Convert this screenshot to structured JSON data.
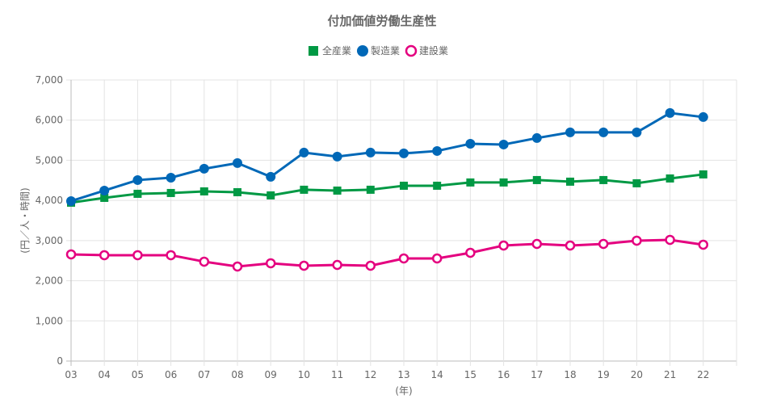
{
  "chart_data": {
    "type": "line",
    "title": "付加価値労働生産性",
    "xlabel": "(年)",
    "ylabel": "(円／人・時間)",
    "categories": [
      "03",
      "04",
      "05",
      "06",
      "07",
      "08",
      "09",
      "10",
      "11",
      "12",
      "13",
      "14",
      "15",
      "16",
      "17",
      "18",
      "19",
      "20",
      "21",
      "22"
    ],
    "ylim": [
      0,
      7000
    ],
    "yticks": [
      0,
      1000,
      2000,
      3000,
      4000,
      5000,
      6000,
      7000
    ],
    "ytick_labels": [
      "0",
      "1,000",
      "2,000",
      "3,000",
      "4,000",
      "5,000",
      "6,000",
      "7,000"
    ],
    "grid": true,
    "legend_position": "top-center",
    "series": [
      {
        "name": "全産業",
        "color": "#009944",
        "marker": "square",
        "values": [
          3944,
          4064,
          4165,
          4185,
          4225,
          4205,
          4125,
          4266,
          4245,
          4266,
          4366,
          4366,
          4447,
          4447,
          4507,
          4467,
          4507,
          4427,
          4547,
          4648
        ]
      },
      {
        "name": "製造業",
        "color": "#0068b7",
        "marker": "circle",
        "values": [
          3984,
          4245,
          4507,
          4567,
          4789,
          4930,
          4588,
          5191,
          5091,
          5191,
          5171,
          5231,
          5412,
          5392,
          5553,
          5694,
          5694,
          5694,
          6177,
          6076
        ]
      },
      {
        "name": "建設業",
        "color": "#e4007f",
        "marker": "hollow-circle",
        "values": [
          2656,
          2636,
          2636,
          2636,
          2475,
          2354,
          2435,
          2374,
          2394,
          2374,
          2555,
          2555,
          2696,
          2877,
          2917,
          2877,
          2917,
          2998,
          3018,
          2897
        ]
      }
    ]
  }
}
